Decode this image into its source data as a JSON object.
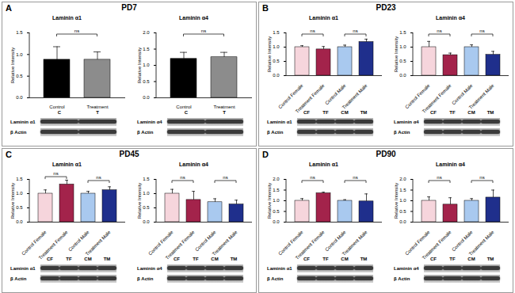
{
  "chart_data": [
    {
      "type": "bar",
      "panel": "A",
      "subtitle": "PD7",
      "title": "Laminin α1",
      "ylabel": "Relative Intensity",
      "categories": [
        "Control",
        "Treatment"
      ],
      "values": [
        0.88,
        0.88
      ],
      "errors": [
        0.3,
        0.18
      ],
      "colors": [
        "#000000",
        "#8c8c8c"
      ],
      "ylim": [
        0,
        1.5
      ],
      "yticks": [
        {
          "value": 0,
          "label": "0.0"
        },
        0.5,
        {
          "value": 1,
          "label": "1.0"
        },
        1.5
      ],
      "annotations": [
        {
          "text": "ns",
          "between": [
            "Control",
            "Treatment"
          ]
        }
      ],
      "blot": {
        "lanes": [
          "C",
          "T"
        ],
        "bands": [
          "Laminin α1",
          "β Actin"
        ]
      }
    },
    {
      "type": "bar",
      "panel": "A",
      "subtitle": "PD7",
      "title": "Laminin α4",
      "ylabel": "Relative Intensity",
      "categories": [
        "Control",
        "Treatment"
      ],
      "values": [
        1.2,
        1.25
      ],
      "errors": [
        0.2,
        0.15
      ],
      "colors": [
        "#000000",
        "#8c8c8c"
      ],
      "ylim": [
        0,
        2
      ],
      "yticks": [
        {
          "value": 0,
          "label": "0.0"
        },
        0.5,
        {
          "value": 1,
          "label": "1.0"
        },
        1.5,
        {
          "value": 2,
          "label": "2.0"
        }
      ],
      "annotations": [
        {
          "text": "ns",
          "between": [
            "Control",
            "Treatment"
          ]
        }
      ],
      "blot": {
        "lanes": [
          "C",
          "T"
        ],
        "bands": [
          "Laminin α4",
          "β Actin"
        ]
      }
    },
    {
      "type": "bar",
      "panel": "B",
      "subtitle": "PD23",
      "title": "Laminin α1",
      "ylabel": "Relative Intensity",
      "categories": [
        "Control Female",
        "Treatment Female",
        "Control Male",
        "Treatment Male"
      ],
      "values": [
        1.0,
        0.92,
        1.0,
        1.18
      ],
      "errors": [
        0.05,
        0.1,
        0.07,
        0.1
      ],
      "colors": [
        "#f6d5dc",
        "#a3234b",
        "#a9c9ef",
        "#1f2f8c"
      ],
      "ylim": [
        0,
        1.5
      ],
      "yticks": [
        {
          "value": 0,
          "label": "0.0"
        },
        0.5,
        {
          "value": 1,
          "label": "1.0"
        },
        1.5
      ],
      "annotations": [
        {
          "text": "ns",
          "between": [
            "Control Female",
            "Treatment Female"
          ]
        },
        {
          "text": "ns",
          "between": [
            "Control Male",
            "Treatment Male"
          ]
        }
      ],
      "blot": {
        "lanes": [
          "CF",
          "TF",
          "CM",
          "TM"
        ],
        "bands": [
          "Laminin α1",
          "β Actin"
        ]
      }
    },
    {
      "type": "bar",
      "panel": "B",
      "subtitle": "PD23",
      "title": "Laminin α4",
      "ylabel": "Relative Intensity",
      "categories": [
        "Control Female",
        "Treatment Female",
        "Control Male",
        "Treatment Male"
      ],
      "values": [
        1.0,
        0.72,
        1.0,
        0.73
      ],
      "errors": [
        0.2,
        0.07,
        0.08,
        0.12
      ],
      "colors": [
        "#f6d5dc",
        "#a3234b",
        "#a9c9ef",
        "#1f2f8c"
      ],
      "ylim": [
        0,
        1.5
      ],
      "yticks": [
        {
          "value": 0,
          "label": "0.0"
        },
        0.5,
        {
          "value": 1,
          "label": "1.0"
        },
        1.5
      ],
      "annotations": [
        {
          "text": "ns",
          "between": [
            "Control Female",
            "Treatment Female"
          ]
        },
        {
          "text": "ns",
          "between": [
            "Control Male",
            "Treatment Male"
          ]
        }
      ],
      "blot": {
        "lanes": [
          "CF",
          "TF",
          "CM",
          "TM"
        ],
        "bands": [
          "Laminin α4",
          "β Actin"
        ]
      }
    },
    {
      "type": "bar",
      "panel": "C",
      "subtitle": "PD45",
      "title": "Laminin α1",
      "ylabel": "Relative Intensity",
      "categories": [
        "Control Female",
        "Treatment Female",
        "Control Male",
        "Treatment Male"
      ],
      "values": [
        1.0,
        1.32,
        1.0,
        1.12
      ],
      "errors": [
        0.13,
        0.15,
        0.08,
        0.12
      ],
      "colors": [
        "#f6d5dc",
        "#a3234b",
        "#a9c9ef",
        "#1f2f8c"
      ],
      "ylim": [
        0,
        1.5
      ],
      "yticks": [
        {
          "value": 0,
          "label": "0.0"
        },
        0.5,
        {
          "value": 1,
          "label": "1.0"
        },
        1.5
      ],
      "annotations": [
        {
          "text": "ns",
          "between": [
            "Control Female",
            "Treatment Female"
          ]
        },
        {
          "text": "ns",
          "between": [
            "Control Male",
            "Treatment Male"
          ]
        }
      ],
      "blot": {
        "lanes": [
          "CF",
          "TF",
          "CM",
          "TM"
        ],
        "bands": [
          "Laminin α1",
          "β Actin"
        ]
      }
    },
    {
      "type": "bar",
      "panel": "C",
      "subtitle": "PD45",
      "title": "Laminin α4",
      "ylabel": "Relative Intensity",
      "categories": [
        "Control Female",
        "Treatment Female",
        "Control Male",
        "Treatment Male"
      ],
      "values": [
        1.0,
        0.78,
        0.7,
        0.62
      ],
      "errors": [
        0.15,
        0.3,
        0.12,
        0.15
      ],
      "colors": [
        "#f6d5dc",
        "#a3234b",
        "#a9c9ef",
        "#1f2f8c"
      ],
      "ylim": [
        0,
        1.5
      ],
      "yticks": [
        {
          "value": 0,
          "label": "0.0"
        },
        0.5,
        {
          "value": 1,
          "label": "1.0"
        },
        1.5
      ],
      "annotations": [
        {
          "text": "ns",
          "between": [
            "Control Female",
            "Treatment Female"
          ]
        },
        {
          "text": "ns",
          "between": [
            "Control Male",
            "Treatment Male"
          ]
        }
      ],
      "blot": {
        "lanes": [
          "CF",
          "TF",
          "CM",
          "TM"
        ],
        "bands": [
          "Laminin α4",
          "β Actin"
        ]
      }
    },
    {
      "type": "bar",
      "panel": "D",
      "subtitle": "PD90",
      "title": "Laminin α1",
      "ylabel": "Relative Intensity",
      "categories": [
        "Control Female",
        "Treatment Female",
        "Control Male",
        "Treatment Male"
      ],
      "values": [
        1.0,
        1.35,
        1.0,
        0.97
      ],
      "errors": [
        0.1,
        0.05,
        0.05,
        0.35
      ],
      "colors": [
        "#f6d5dc",
        "#a3234b",
        "#a9c9ef",
        "#1f2f8c"
      ],
      "ylim": [
        0,
        2
      ],
      "yticks": [
        {
          "value": 0,
          "label": "0.0"
        },
        0.5,
        {
          "value": 1,
          "label": "1.0"
        },
        1.5,
        {
          "value": 2,
          "label": "2.0"
        }
      ],
      "annotations": [
        {
          "text": "ns",
          "between": [
            "Control Female",
            "Treatment Female"
          ]
        },
        {
          "text": "ns",
          "between": [
            "Control Male",
            "Treatment Male"
          ]
        }
      ],
      "blot": {
        "lanes": [
          "CF",
          "TF",
          "CM",
          "TM"
        ],
        "bands": [
          "Laminin α1",
          "β Actin"
        ]
      }
    },
    {
      "type": "bar",
      "panel": "D",
      "subtitle": "PD90",
      "title": "Laminin α4",
      "ylabel": "Relative Intensity",
      "categories": [
        "Control Female",
        "Treatment Female",
        "Control Male",
        "Treatment Male"
      ],
      "values": [
        1.0,
        0.82,
        1.0,
        1.15
      ],
      "errors": [
        0.18,
        0.32,
        0.1,
        0.35
      ],
      "colors": [
        "#f6d5dc",
        "#a3234b",
        "#a9c9ef",
        "#1f2f8c"
      ],
      "ylim": [
        0,
        2
      ],
      "yticks": [
        {
          "value": 0,
          "label": "0.0"
        },
        0.5,
        {
          "value": 1,
          "label": "1.0"
        },
        1.5,
        {
          "value": 2,
          "label": "2.0"
        }
      ],
      "annotations": [
        {
          "text": "ns",
          "between": [
            "Control Female",
            "Treatment Female"
          ]
        },
        {
          "text": "ns",
          "between": [
            "Control Male",
            "Treatment Male"
          ]
        }
      ],
      "blot": {
        "lanes": [
          "CF",
          "TF",
          "CM",
          "TM"
        ],
        "bands": [
          "Laminin α4",
          "β Actin"
        ]
      }
    }
  ]
}
